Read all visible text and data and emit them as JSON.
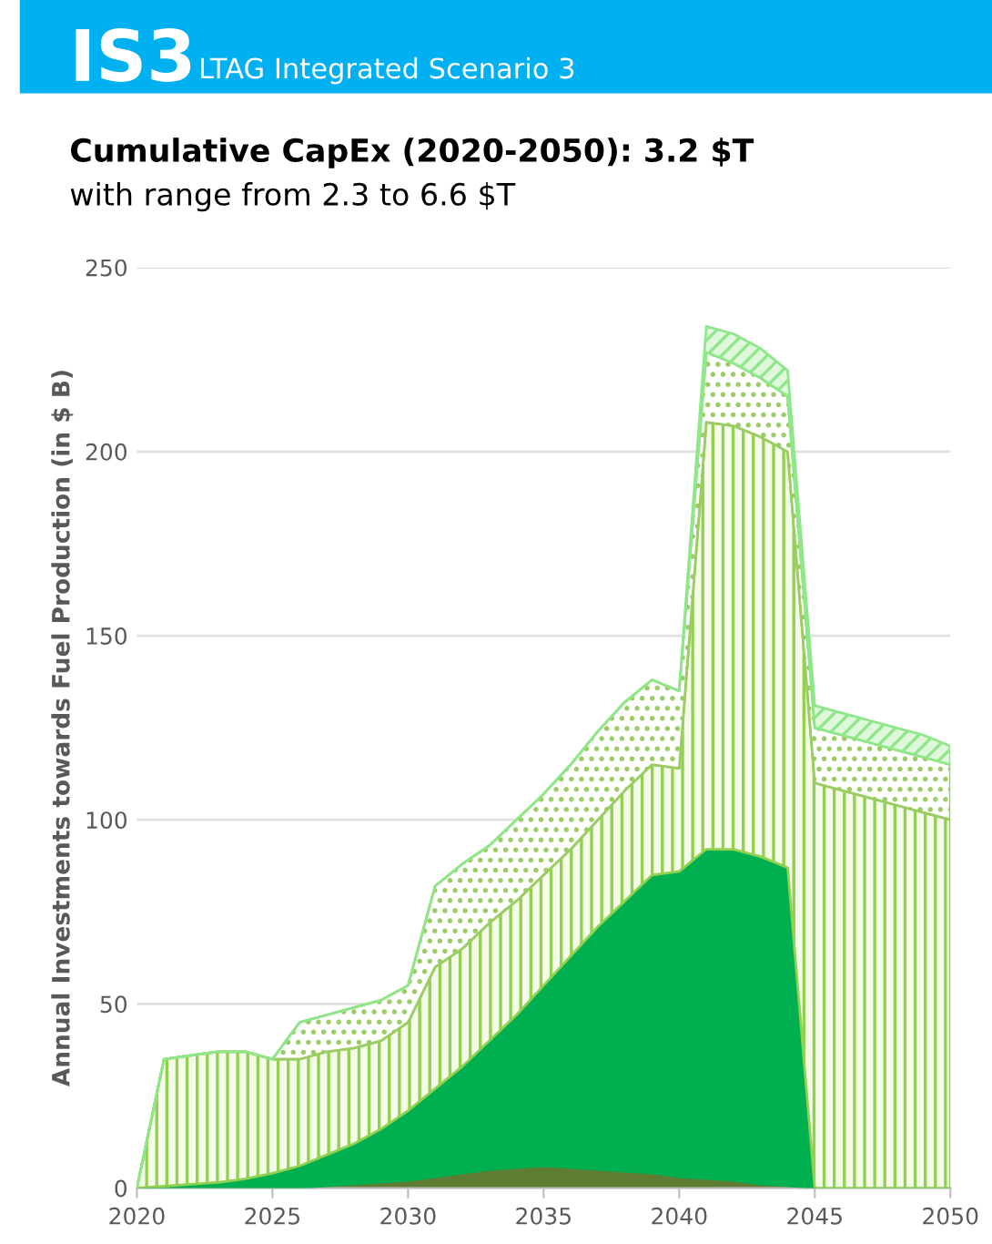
{
  "chart_data": {
    "type": "area",
    "stacked": true,
    "title": "Cumulative CapEx (2020-2050): 3.2 $T",
    "subtitle": "with range from 2.3 to 6.6 $T",
    "ylabel": "Annual Investments towards Fuel Production (in $ B)",
    "annotations": [
      "IS3",
      "LTAG Integrated Scenario 3"
    ],
    "x": [
      2020,
      2021,
      2022,
      2023,
      2024,
      2025,
      2026,
      2027,
      2028,
      2029,
      2030,
      2031,
      2032,
      2033,
      2034,
      2035,
      2036,
      2037,
      2038,
      2039,
      2040,
      2041,
      2042,
      2043,
      2044,
      2045,
      2046,
      2047,
      2048,
      2049,
      2050
    ],
    "series": [
      {
        "color": "#5e7d32",
        "values": [
          0,
          0,
          0,
          0,
          0,
          0,
          0,
          0.5,
          1,
          1.5,
          2,
          3,
          4,
          5,
          5.5,
          6,
          5.5,
          5,
          4.5,
          4,
          3,
          2.5,
          2,
          1,
          0.5,
          0,
          0,
          0,
          0,
          0,
          0
        ]
      },
      {
        "color": "#00b050",
        "values": [
          0,
          0.5,
          1,
          1.5,
          2.5,
          4,
          6,
          8.5,
          11,
          14.5,
          19,
          24,
          29,
          35,
          41.5,
          49,
          57.5,
          66,
          73.5,
          81,
          83,
          89.5,
          90,
          89,
          86.5,
          0,
          0,
          0,
          0,
          0,
          0
        ]
      },
      {
        "color": "#92d050",
        "values": [
          0,
          34.5,
          35,
          35.5,
          34.5,
          31,
          29,
          28,
          26,
          24,
          24,
          33,
          32,
          32,
          31,
          30,
          29,
          29,
          30,
          30,
          28,
          116,
          115,
          114,
          113,
          110,
          108,
          106,
          104,
          102,
          100
        ]
      },
      {
        "color": "#9ccc65",
        "values": [
          0,
          0,
          0,
          0,
          0,
          0,
          10,
          10,
          11,
          11,
          10,
          22,
          23,
          21,
          22,
          22,
          23,
          24,
          24,
          23,
          21,
          19,
          17,
          16,
          15,
          15,
          15,
          15,
          15,
          15,
          15
        ]
      },
      {
        "color": "#8ee88a",
        "values": [
          0,
          0,
          0,
          0,
          0,
          0,
          0,
          0,
          0,
          0,
          0,
          0,
          0,
          0,
          0,
          0,
          0,
          0,
          0,
          0,
          0,
          7,
          8,
          8,
          7,
          6,
          6,
          6,
          6,
          6,
          5
        ]
      }
    ],
    "xlim": [
      2020,
      2050
    ],
    "xticks": [
      2020,
      2025,
      2030,
      2035,
      2040,
      2045,
      2050
    ],
    "ylim": [
      0,
      250
    ],
    "yticks": [
      0,
      50,
      100,
      150,
      200,
      250
    ],
    "grid": "y",
    "legend": false
  }
}
